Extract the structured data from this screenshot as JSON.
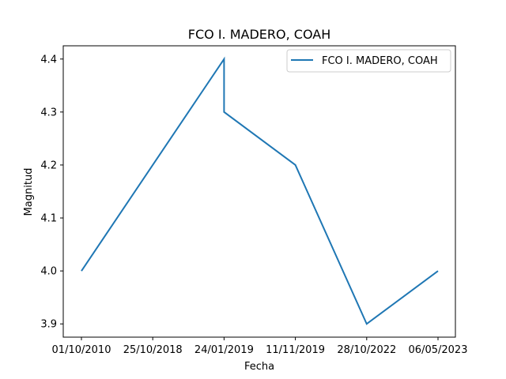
{
  "chart_data": {
    "type": "line",
    "title": "FCO I. MADERO, COAH",
    "xlabel": "Fecha",
    "ylabel": "Magnitud",
    "categories": [
      "01/10/2010",
      "25/10/2018",
      "24/01/2019",
      "24/01/2019",
      "11/11/2019",
      "28/10/2022",
      "06/05/2023"
    ],
    "xticks": [
      "01/10/2010",
      "25/10/2018",
      "24/01/2019",
      "11/11/2019",
      "28/10/2022",
      "06/05/2023"
    ],
    "series": [
      {
        "name": "FCO I. MADERO, COAH",
        "color": "#1f77b4",
        "values": [
          4.0,
          4.2,
          4.4,
          4.3,
          4.2,
          3.9,
          4.0
        ]
      }
    ],
    "ylim": [
      3.875,
      4.425
    ],
    "yticks": [
      "3.9",
      "4.0",
      "4.1",
      "4.2",
      "4.3",
      "4.4"
    ],
    "grid": false,
    "legend_position": "top-right"
  }
}
